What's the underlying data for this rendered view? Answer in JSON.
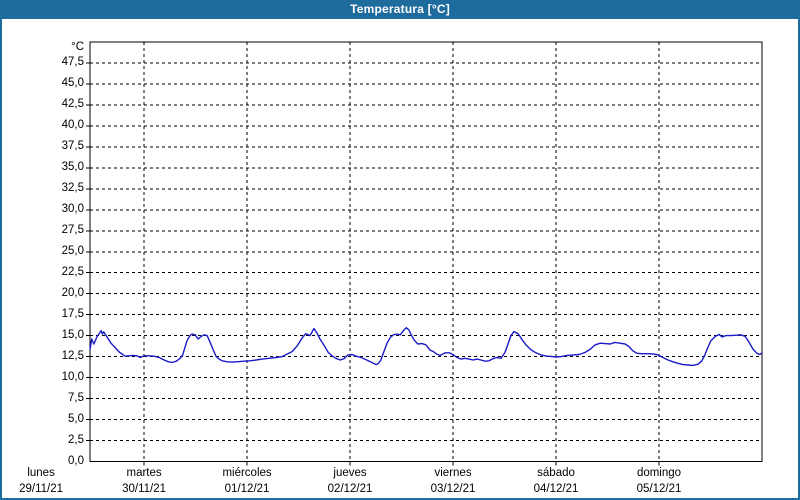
{
  "window": {
    "title": "Temperatura [°C]"
  },
  "colors": {
    "frame_blue": "#1e6b9e",
    "title_text": "#ffffff",
    "plot_border": "#000000",
    "grid": "#000000",
    "series_line": "#1a1ac8",
    "label_text": "#000000",
    "background": "#ffffff"
  },
  "chart_data": {
    "type": "line",
    "title": "Temperatura [°C]",
    "unit_label": "°C",
    "ylabel": "Temperatura",
    "ylim": [
      0,
      50
    ],
    "ytick_min": 0,
    "ytick_max": 47.5,
    "ytick_step": 2.5,
    "decimal_separator": ",",
    "grid": "dashed",
    "legend": "none",
    "x_unit": "hours_from_monday_00",
    "x_start_hour": 11.4,
    "x_end_hour": 168.0,
    "day_ticks": [
      {
        "hour": 0,
        "day": "lunes",
        "date": "29/11/21"
      },
      {
        "hour": 24,
        "day": "martes",
        "date": "30/11/21"
      },
      {
        "hour": 48,
        "day": "miércoles",
        "date": "01/12/21"
      },
      {
        "hour": 72,
        "day": "jueves",
        "date": "02/12/21"
      },
      {
        "hour": 96,
        "day": "viernes",
        "date": "03/12/21"
      },
      {
        "hour": 120,
        "day": "sábado",
        "date": "04/12/21"
      },
      {
        "hour": 144,
        "day": "domingo",
        "date": "05/12/21"
      }
    ],
    "points": [
      [
        11.4,
        13.3
      ],
      [
        11.8,
        14.6
      ],
      [
        12.3,
        14.0
      ],
      [
        13.0,
        14.85
      ],
      [
        14.0,
        15.6
      ],
      [
        14.3,
        15.2
      ],
      [
        14.6,
        15.45
      ],
      [
        15.4,
        14.8
      ],
      [
        16.3,
        14.1
      ],
      [
        17.2,
        13.6
      ],
      [
        18.2,
        13.05
      ],
      [
        18.9,
        12.8
      ],
      [
        19.6,
        12.55
      ],
      [
        20.5,
        12.6
      ],
      [
        21.4,
        12.65
      ],
      [
        22.4,
        12.6
      ],
      [
        23.1,
        12.4
      ],
      [
        24.0,
        12.6
      ],
      [
        25.2,
        12.6
      ],
      [
        26.3,
        12.55
      ],
      [
        27.5,
        12.4
      ],
      [
        28.7,
        12.1
      ],
      [
        29.6,
        11.9
      ],
      [
        30.5,
        11.8
      ],
      [
        31.5,
        11.95
      ],
      [
        32.4,
        12.3
      ],
      [
        33.0,
        12.7
      ],
      [
        34.0,
        14.4
      ],
      [
        34.7,
        15.0
      ],
      [
        35.2,
        15.2
      ],
      [
        35.9,
        15.1
      ],
      [
        36.6,
        14.6
      ],
      [
        37.3,
        14.9
      ],
      [
        38.0,
        15.1
      ],
      [
        38.7,
        15.0
      ],
      [
        39.4,
        14.2
      ],
      [
        40.1,
        13.3
      ],
      [
        40.8,
        12.5
      ],
      [
        41.5,
        12.2
      ],
      [
        42.2,
        12.0
      ],
      [
        43.3,
        11.9
      ],
      [
        44.5,
        11.85
      ],
      [
        45.9,
        11.9
      ],
      [
        47.3,
        11.95
      ],
      [
        48.7,
        12.0
      ],
      [
        50.1,
        12.1
      ],
      [
        51.5,
        12.2
      ],
      [
        53.1,
        12.3
      ],
      [
        54.8,
        12.4
      ],
      [
        56.2,
        12.5
      ],
      [
        57.3,
        12.8
      ],
      [
        58.5,
        13.1
      ],
      [
        59.7,
        13.8
      ],
      [
        60.8,
        14.7
      ],
      [
        61.7,
        15.25
      ],
      [
        62.7,
        15.0
      ],
      [
        63.6,
        15.85
      ],
      [
        64.3,
        15.3
      ],
      [
        65.0,
        14.6
      ],
      [
        66.0,
        13.8
      ],
      [
        66.9,
        13.0
      ],
      [
        67.8,
        12.6
      ],
      [
        68.7,
        12.3
      ],
      [
        69.7,
        12.1
      ],
      [
        70.6,
        12.25
      ],
      [
        71.5,
        12.7
      ],
      [
        72.5,
        12.75
      ],
      [
        73.4,
        12.55
      ],
      [
        74.6,
        12.4
      ],
      [
        75.7,
        12.15
      ],
      [
        76.9,
        11.85
      ],
      [
        78.1,
        11.55
      ],
      [
        78.6,
        11.7
      ],
      [
        79.2,
        12.1
      ],
      [
        79.9,
        13.1
      ],
      [
        80.6,
        14.1
      ],
      [
        81.4,
        14.8
      ],
      [
        82.1,
        15.1
      ],
      [
        82.9,
        15.2
      ],
      [
        83.7,
        15.1
      ],
      [
        84.5,
        15.65
      ],
      [
        85.1,
        15.95
      ],
      [
        85.7,
        15.7
      ],
      [
        86.3,
        15.05
      ],
      [
        86.9,
        14.5
      ],
      [
        87.8,
        14.0
      ],
      [
        88.8,
        14.05
      ],
      [
        89.7,
        13.9
      ],
      [
        90.6,
        13.3
      ],
      [
        91.4,
        13.1
      ],
      [
        92.2,
        12.8
      ],
      [
        93.0,
        12.65
      ],
      [
        94.2,
        12.95
      ],
      [
        95.1,
        12.95
      ],
      [
        96.0,
        12.75
      ],
      [
        96.9,
        12.4
      ],
      [
        97.9,
        12.2
      ],
      [
        98.8,
        12.3
      ],
      [
        99.7,
        12.2
      ],
      [
        100.7,
        12.1
      ],
      [
        101.6,
        12.2
      ],
      [
        102.5,
        12.1
      ],
      [
        103.5,
        11.95
      ],
      [
        104.4,
        12.0
      ],
      [
        105.3,
        12.25
      ],
      [
        106.2,
        12.4
      ],
      [
        107.2,
        12.3
      ],
      [
        108.1,
        13.0
      ],
      [
        108.8,
        14.0
      ],
      [
        109.5,
        15.0
      ],
      [
        110.2,
        15.5
      ],
      [
        111.2,
        15.2
      ],
      [
        112.1,
        14.5
      ],
      [
        113.0,
        13.9
      ],
      [
        114.2,
        13.3
      ],
      [
        115.3,
        12.95
      ],
      [
        116.5,
        12.7
      ],
      [
        117.9,
        12.55
      ],
      [
        119.1,
        12.5
      ],
      [
        120.0,
        12.45
      ],
      [
        121.2,
        12.5
      ],
      [
        122.6,
        12.65
      ],
      [
        124.0,
        12.7
      ],
      [
        125.4,
        12.75
      ],
      [
        126.8,
        13.0
      ],
      [
        128.0,
        13.4
      ],
      [
        129.1,
        13.9
      ],
      [
        130.3,
        14.1
      ],
      [
        131.4,
        14.05
      ],
      [
        132.6,
        14.0
      ],
      [
        133.7,
        14.2
      ],
      [
        134.9,
        14.1
      ],
      [
        136.1,
        14.0
      ],
      [
        137.0,
        13.7
      ],
      [
        137.9,
        13.2
      ],
      [
        138.9,
        12.9
      ],
      [
        140.0,
        12.85
      ],
      [
        141.4,
        12.85
      ],
      [
        142.8,
        12.8
      ],
      [
        143.8,
        12.7
      ],
      [
        144.9,
        12.4
      ],
      [
        146.1,
        12.1
      ],
      [
        147.2,
        11.9
      ],
      [
        148.4,
        11.7
      ],
      [
        149.6,
        11.55
      ],
      [
        150.7,
        11.5
      ],
      [
        151.9,
        11.45
      ],
      [
        153.1,
        11.6
      ],
      [
        154.0,
        12.0
      ],
      [
        154.7,
        12.7
      ],
      [
        155.4,
        13.6
      ],
      [
        156.1,
        14.4
      ],
      [
        157.1,
        14.9
      ],
      [
        158.0,
        15.15
      ],
      [
        158.7,
        14.85
      ],
      [
        159.6,
        15.0
      ],
      [
        160.8,
        15.0
      ],
      [
        162.0,
        15.05
      ],
      [
        163.1,
        15.1
      ],
      [
        164.1,
        14.9
      ],
      [
        165.0,
        14.2
      ],
      [
        165.9,
        13.4
      ],
      [
        166.8,
        12.9
      ],
      [
        167.5,
        12.75
      ],
      [
        168.0,
        12.95
      ]
    ]
  }
}
